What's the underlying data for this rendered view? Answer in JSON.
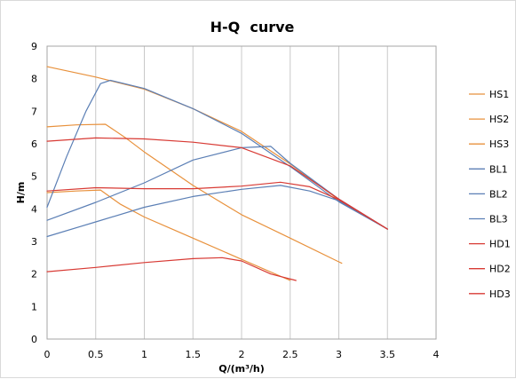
{
  "chart_data": {
    "type": "line",
    "title": "H-Q  curve",
    "xlabel": "Q/(m³/h)",
    "ylabel": "H/m",
    "xlim": [
      0,
      4
    ],
    "ylim": [
      0,
      9
    ],
    "xticks": [
      "0",
      "0.5",
      "1",
      "1.5",
      "2",
      "2.5",
      "3",
      "3.5",
      "4"
    ],
    "yticks": [
      "0",
      "1",
      "2",
      "3",
      "4",
      "5",
      "6",
      "7",
      "8",
      "9"
    ],
    "grid": "vertical",
    "legend_position": "right",
    "series": [
      {
        "name": "HS1",
        "color": "#E8913C",
        "x": [
          0,
          0.5,
          1,
          1.5,
          2,
          2.5,
          3,
          3.5
        ],
        "y": [
          8.37,
          8.05,
          7.68,
          7.08,
          6.38,
          5.38,
          4.28,
          3.38
        ]
      },
      {
        "name": "HS2",
        "color": "#E8913C",
        "x": [
          0,
          0.3,
          0.6,
          0.8,
          1,
          1.5,
          2,
          2.5,
          3.03
        ],
        "y": [
          6.52,
          6.58,
          6.6,
          6.2,
          5.75,
          4.72,
          3.82,
          3.1,
          2.33
        ]
      },
      {
        "name": "HS3",
        "color": "#E8913C",
        "x": [
          0,
          0.3,
          0.55,
          0.75,
          1,
          1.5,
          2,
          2.5
        ],
        "y": [
          4.5,
          4.55,
          4.58,
          4.15,
          3.75,
          3.1,
          2.45,
          1.8
        ]
      },
      {
        "name": "BL1",
        "color": "#5B7FB5",
        "x": [
          0,
          0.2,
          0.4,
          0.55,
          0.65,
          1,
          1.5,
          2,
          2.5,
          3,
          3.5
        ],
        "y": [
          4.05,
          5.6,
          7.0,
          7.85,
          7.95,
          7.7,
          7.08,
          6.32,
          5.3,
          4.22,
          3.38
        ]
      },
      {
        "name": "BL2",
        "color": "#5B7FB5",
        "x": [
          0,
          0.5,
          1,
          1.5,
          2,
          2.3,
          2.5,
          3,
          3.5
        ],
        "y": [
          3.65,
          4.2,
          4.8,
          5.5,
          5.88,
          5.92,
          5.4,
          4.3,
          3.38
        ]
      },
      {
        "name": "BL3",
        "color": "#5B7FB5",
        "x": [
          0,
          0.5,
          1,
          1.5,
          2,
          2.4,
          2.7,
          3,
          3.5
        ],
        "y": [
          3.15,
          3.6,
          4.05,
          4.38,
          4.6,
          4.72,
          4.55,
          4.25,
          3.38
        ]
      },
      {
        "name": "HD1",
        "color": "#D83A34",
        "x": [
          0,
          0.5,
          1,
          1.5,
          2,
          2.5,
          3,
          3.5
        ],
        "y": [
          6.08,
          6.18,
          6.15,
          6.05,
          5.88,
          5.32,
          4.3,
          3.38
        ]
      },
      {
        "name": "HD2",
        "color": "#D83A34",
        "x": [
          0,
          0.5,
          1,
          1.5,
          2,
          2.4,
          2.7,
          3,
          3.5
        ],
        "y": [
          4.55,
          4.65,
          4.62,
          4.62,
          4.7,
          4.82,
          4.68,
          4.28,
          3.38
        ]
      },
      {
        "name": "HD3",
        "color": "#D83A34",
        "x": [
          0,
          0.5,
          1,
          1.5,
          1.8,
          2,
          2.3,
          2.56
        ],
        "y": [
          2.07,
          2.2,
          2.35,
          2.47,
          2.5,
          2.4,
          2.0,
          1.8
        ]
      }
    ]
  }
}
